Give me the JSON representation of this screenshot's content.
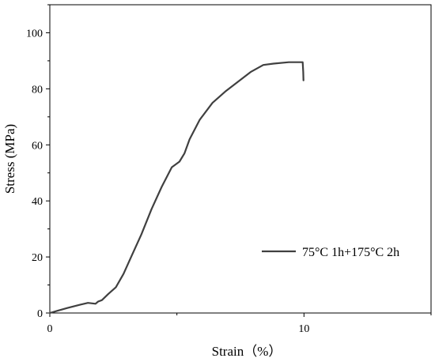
{
  "chart_data": {
    "type": "line",
    "xlabel": "Strain（%）",
    "ylabel": "Stress (MPa)",
    "xlim": [
      0,
      15
    ],
    "ylim": [
      0,
      110
    ],
    "x_ticks": [
      0,
      10
    ],
    "y_ticks": [
      0,
      20,
      40,
      60,
      80,
      100
    ],
    "grid": false,
    "legend_position": "lower-right",
    "line_color": "#404040",
    "series": [
      {
        "name": "75°C 1h+175°C 2h",
        "x": [
          0,
          0.3,
          0.7,
          1.2,
          1.5,
          1.8,
          1.9,
          2.05,
          2.3,
          2.6,
          2.9,
          3.2,
          3.6,
          4.0,
          4.4,
          4.8,
          5.1,
          5.3,
          5.5,
          5.9,
          6.4,
          6.9,
          7.4,
          7.9,
          8.4,
          8.8,
          9.4,
          9.95,
          9.97,
          9.98
        ],
        "y": [
          0,
          0.8,
          1.8,
          3.0,
          3.6,
          3.3,
          4.1,
          4.6,
          6.8,
          9.2,
          14,
          20,
          28,
          37,
          45,
          52,
          54,
          57,
          62,
          69,
          75,
          79,
          82.5,
          86,
          88.5,
          89,
          89.5,
          89.5,
          86,
          83
        ]
      }
    ]
  }
}
